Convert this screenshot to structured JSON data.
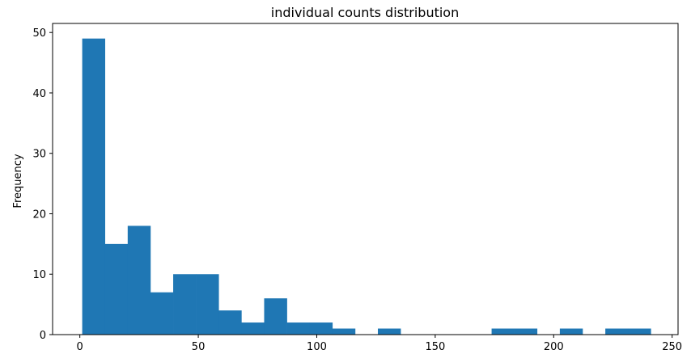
{
  "chart_data": {
    "type": "bar",
    "title": "individual counts distribution",
    "xlabel": "",
    "ylabel": "Frequency",
    "bar_color": "#1f77b4",
    "grid": false,
    "legend": "none",
    "xlim": [
      -11.5,
      252.5
    ],
    "ylim": [
      0,
      51.5
    ],
    "xticks": [
      0,
      50,
      100,
      150,
      200,
      250
    ],
    "yticks": [
      0,
      10,
      20,
      30,
      40,
      50
    ],
    "bin_edges": [
      1,
      10.6,
      20.2,
      29.8,
      39.4,
      49,
      58.6,
      68.2,
      77.8,
      87.4,
      97,
      106.6,
      116.2,
      125.8,
      135.4,
      145,
      154.6,
      164.2,
      173.8,
      183.4,
      193,
      202.6,
      212.2,
      221.8,
      231.4,
      241
    ],
    "values": [
      49,
      15,
      18,
      7,
      10,
      10,
      4,
      2,
      6,
      2,
      2,
      1,
      0,
      1,
      0,
      0,
      0,
      0,
      1,
      1,
      0,
      1,
      0,
      1,
      1
    ]
  }
}
